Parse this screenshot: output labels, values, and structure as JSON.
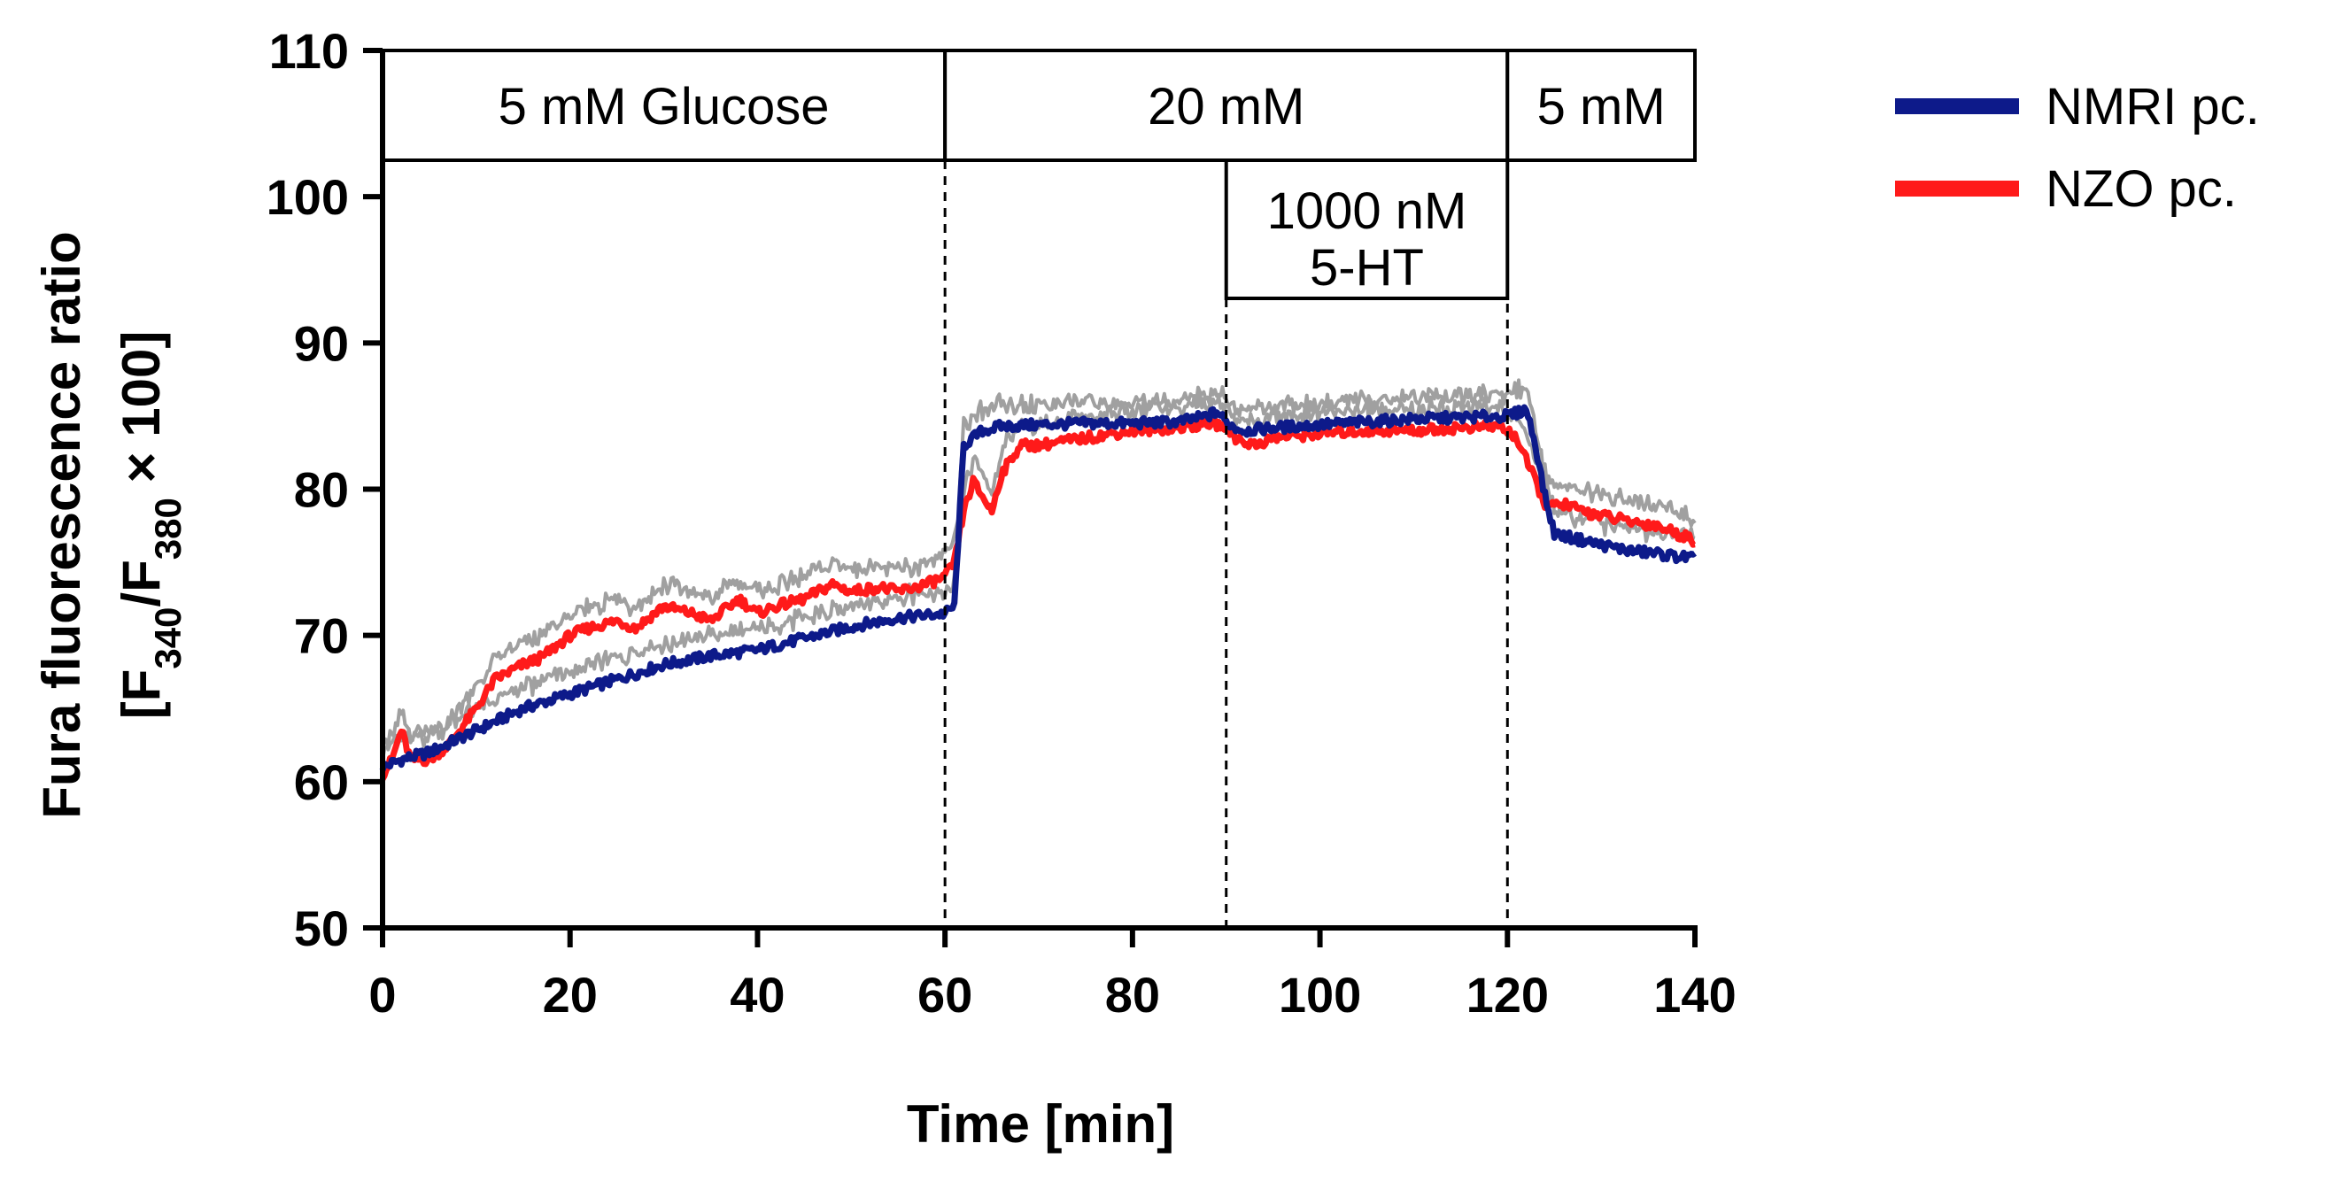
{
  "chart_data": {
    "type": "line",
    "xlabel": "Time [min]",
    "ylabel_line1": "Fura fluorescence ratio",
    "ylabel_line2": {
      "prefix": "[F",
      "sub1": "340",
      "mid": "/F",
      "sub2": "380",
      "suffix": " × 100]"
    },
    "xlim": [
      0,
      140
    ],
    "ylim": [
      50,
      110
    ],
    "xticks": [
      "0",
      "20",
      "40",
      "60",
      "80",
      "100",
      "120",
      "140"
    ],
    "yticks": [
      "50",
      "60",
      "70",
      "80",
      "90",
      "100",
      "110"
    ],
    "vlines": [
      60,
      90,
      120
    ],
    "conditions": {
      "top": [
        {
          "label": "5 mM Glucose",
          "start": 0,
          "end": 60
        },
        {
          "label": "20 mM",
          "start": 60,
          "end": 120
        },
        {
          "label": "5 mM",
          "start": 120,
          "end": 140
        }
      ],
      "stimulus": {
        "line1": "1000 nM",
        "line2": "5-HT",
        "start": 90,
        "end": 120
      }
    },
    "series": [
      {
        "name": "NMRI pc.",
        "color": "#0d1a8a",
        "x": [
          0,
          2,
          5,
          10,
          15,
          20,
          25,
          30,
          35,
          40,
          45,
          50,
          55,
          60,
          61,
          62,
          64,
          66,
          70,
          75,
          80,
          85,
          88,
          89,
          90,
          91,
          92,
          95,
          100,
          105,
          110,
          115,
          119,
          120,
          121,
          122,
          123,
          124,
          125,
          126,
          128,
          130,
          133,
          136,
          138,
          140
        ],
        "y": [
          61.0,
          61.5,
          62.0,
          63.5,
          65.0,
          66.0,
          67.0,
          68.0,
          68.6,
          69.0,
          69.8,
          70.6,
          71.2,
          71.5,
          72.0,
          83.0,
          84.0,
          84.3,
          84.4,
          84.5,
          84.5,
          84.6,
          85.0,
          85.3,
          84.6,
          84.2,
          84.0,
          84.2,
          84.4,
          84.6,
          84.8,
          84.9,
          85.0,
          85.0,
          85.2,
          85.5,
          83.0,
          79.5,
          77.0,
          76.8,
          76.5,
          76.2,
          75.8,
          75.6,
          75.4,
          75.3
        ]
      },
      {
        "name": "NZO pc.",
        "color": "#ff1a1a",
        "x": [
          0,
          1,
          2,
          3,
          5,
          7,
          10,
          12,
          15,
          17,
          20,
          22,
          25,
          27,
          30,
          33,
          35,
          38,
          40,
          42,
          45,
          48,
          50,
          53,
          55,
          58,
          60,
          61,
          62,
          63,
          64,
          65,
          66,
          68,
          70,
          75,
          80,
          85,
          88,
          90,
          91,
          93,
          95,
          100,
          105,
          110,
          115,
          119,
          120,
          121,
          122,
          123,
          124,
          125,
          126,
          128,
          130,
          133,
          136,
          138,
          140
        ],
        "y": [
          60.5,
          61.5,
          63.5,
          61.5,
          61.5,
          62.5,
          65.0,
          67.0,
          68.0,
          68.5,
          70.0,
          70.5,
          71.0,
          70.5,
          72.0,
          71.5,
          71.0,
          72.5,
          71.5,
          72.0,
          72.5,
          73.5,
          73.0,
          73.3,
          73.0,
          73.5,
          74.0,
          75.0,
          78.5,
          80.5,
          79.5,
          78.5,
          81.0,
          83.0,
          83.0,
          83.5,
          84.0,
          84.2,
          84.5,
          84.3,
          83.5,
          83.0,
          83.5,
          83.8,
          84.0,
          84.0,
          84.2,
          84.3,
          84.0,
          83.5,
          82.0,
          80.5,
          79.0,
          78.8,
          79.0,
          78.5,
          78.2,
          77.8,
          77.5,
          77.0,
          76.5
        ]
      }
    ],
    "error_band_color": "#a0a0a0"
  }
}
